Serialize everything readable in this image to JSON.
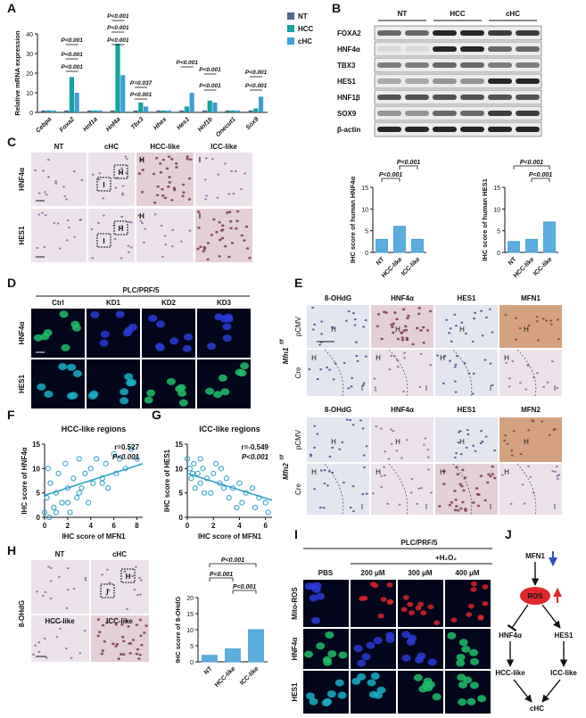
{
  "panels": {
    "A": {
      "label": "A",
      "chart": {
        "type": "bar",
        "y_label": "Relative mRNA expression",
        "categories": [
          "Cebpa",
          "Foxa2",
          "Hnf1a",
          "Hnf4a",
          "Tbx3",
          "Hhex",
          "Hes1",
          "Hnf1b",
          "Onecut1",
          "Sox9"
        ],
        "series": [
          {
            "name": "NT",
            "color": "#4e6a8e",
            "values": [
              1,
              1,
              1,
              1,
              1,
              1,
              1,
              1,
              1,
              1
            ]
          },
          {
            "name": "HCC",
            "color": "#14a3a0",
            "values": [
              1,
              18,
              1,
              35,
              5,
              1,
              3,
              6,
              1,
              2
            ]
          },
          {
            "name": "cHC",
            "color": "#3d9fd6",
            "values": [
              1,
              10,
              1,
              19,
              3,
              1,
              10,
              5,
              1,
              8
            ]
          }
        ],
        "ylim": [
          0,
          40
        ],
        "yticks": [
          0,
          10,
          20,
          30,
          40
        ],
        "annotations": [
          "P<0.001",
          "P<0.001",
          "P<0.001",
          "P<0.001",
          "P<0.001",
          "P<0.001",
          "P=0.037",
          "P<0.001",
          "P<0.001",
          "P<0.001",
          "P<0.001",
          "P<0.001",
          "P<0.001"
        ]
      }
    },
    "B": {
      "label": "B",
      "groups": [
        "NT",
        "HCC",
        "cHC"
      ],
      "proteins": [
        "FOXA2",
        "HNF4α",
        "TBX3",
        "HES1",
        "HNF1β",
        "SOX9",
        "β-actin"
      ]
    },
    "C": {
      "label": "C",
      "columns": [
        "NT",
        "cHC",
        "HCC-like",
        "ICC-like"
      ],
      "rows": [
        "HNF4α",
        "HES1"
      ],
      "inset_labels": [
        "I",
        "H"
      ],
      "charts": [
        {
          "type": "bar",
          "y_label": "IHC score of human HNF4α",
          "categories": [
            "NT",
            "HCC-like",
            "ICC-like"
          ],
          "values": [
            3,
            6,
            3
          ],
          "color": "#3d9fd6",
          "ylim": [
            0,
            15
          ],
          "yticks": [
            0,
            5,
            10,
            15
          ],
          "annotations": [
            "P<0.001",
            "P<0.001"
          ]
        },
        {
          "type": "bar",
          "y_label": "IHC score of human HES1",
          "categories": [
            "NT",
            "HCC-like",
            "ICC-like"
          ],
          "values": [
            2.5,
            3,
            7
          ],
          "color": "#3d9fd6",
          "ylim": [
            0,
            15
          ],
          "yticks": [
            0,
            5,
            10,
            15
          ],
          "annotations": [
            "P<0.001",
            "P<0.001"
          ]
        }
      ]
    },
    "D": {
      "label": "D",
      "cell_line": "PLC/PRF/5",
      "columns": [
        "Ctrl",
        "KD1",
        "KD2",
        "KD3"
      ],
      "rows": [
        "HNF4α",
        "HES1"
      ]
    },
    "E": {
      "label": "E",
      "region_labels": [
        "H",
        "I"
      ],
      "blocks": [
        {
          "genotype": "Mfn1",
          "genotype_sup": "f/f",
          "columns": [
            "8-OHdG",
            "HNF4α",
            "HES1",
            "MFN1"
          ],
          "rows": [
            "pCMV",
            "Cre"
          ]
        },
        {
          "genotype": "Mfn2",
          "genotype_sup": "f/f",
          "columns": [
            "8-OHdG",
            "HNF4α",
            "HES1",
            "MFN2"
          ],
          "rows": [
            "pCMV",
            "Cre"
          ]
        }
      ]
    },
    "F": {
      "label": "F",
      "chart": {
        "type": "scatter",
        "title": "HCC-like regions",
        "stats": [
          "r=0.527",
          "P<0.001"
        ],
        "x_label": "IHC score of MFN1",
        "y_label": "IHC score of HNF4α",
        "x": [
          0,
          0.2,
          0.4,
          0.5,
          0.8,
          1,
          1.2,
          1.5,
          1.8,
          2,
          2.2,
          2.5,
          2.8,
          3,
          3.2,
          3.5,
          3.8,
          4,
          4.2,
          4.5,
          5,
          5.3,
          5.5,
          6,
          6.2,
          6.5,
          7,
          7.5,
          8,
          0.3,
          1,
          2,
          3,
          5
        ],
        "y": [
          1,
          4,
          0,
          7,
          2,
          5,
          9,
          3,
          11,
          6,
          1,
          8,
          4,
          12,
          6,
          9,
          3,
          10,
          7,
          12,
          8,
          11,
          6,
          13,
          9,
          12,
          10,
          14,
          12,
          10,
          1,
          3,
          5,
          7
        ],
        "fit": {
          "x": [
            0,
            8.5
          ],
          "y": [
            4.5,
            11
          ]
        },
        "xlim": [
          0,
          8.5
        ],
        "ylim": [
          0,
          15
        ],
        "xticks": [
          0,
          2,
          4,
          6,
          8
        ],
        "yticks": [
          0,
          5,
          10,
          15
        ],
        "color": "#2a9fc9"
      }
    },
    "G": {
      "label": "G",
      "chart": {
        "type": "scatter",
        "title": "ICC-like regions",
        "stats": [
          "r=-0.549",
          "P<0.001"
        ],
        "x_label": "IHC score of MFN1",
        "y_label": "IHC score of HES1",
        "x": [
          0,
          0.2,
          0.3,
          0.5,
          0.6,
          0.8,
          1,
          1,
          1.2,
          1.5,
          1.8,
          2,
          2.2,
          2.5,
          2.8,
          3,
          3.2,
          3.5,
          4,
          4.2,
          4.5,
          5,
          5.2,
          5.5,
          6,
          6.2,
          0.4,
          1.3,
          2.6,
          3.8
        ],
        "y": [
          12,
          10,
          8,
          11,
          6,
          9,
          12,
          7,
          10,
          8,
          5,
          9,
          11,
          7,
          6,
          8,
          4,
          6,
          7,
          3,
          5,
          6,
          2,
          4,
          3,
          1,
          9,
          5,
          10,
          2
        ],
        "fit": {
          "x": [
            0,
            6.5
          ],
          "y": [
            9,
            3.5
          ]
        },
        "xlim": [
          0,
          6.5
        ],
        "ylim": [
          0,
          15
        ],
        "xticks": [
          0,
          2,
          4,
          6
        ],
        "yticks": [
          0,
          5,
          10,
          15
        ],
        "color": "#2a9fc9"
      }
    },
    "H": {
      "label": "H",
      "columns": [
        "NT",
        "cHC"
      ],
      "lower": [
        "HCC-like",
        "ICC-like"
      ],
      "row": "8-OHdG",
      "inset_labels": [
        "I",
        "H"
      ],
      "chart": {
        "type": "bar",
        "y_label": "IHC score of 8-OHdG",
        "categories": [
          "NT",
          "HCC-like",
          "ICC-like"
        ],
        "values": [
          2,
          4,
          10
        ],
        "color": "#3d9fd6",
        "ylim": [
          0,
          20
        ],
        "yticks": [
          0,
          5,
          10,
          15,
          20
        ],
        "annotations": [
          "P<0.001",
          "P<0.001",
          "P<0.001"
        ]
      }
    },
    "I": {
      "label": "I",
      "cell_line": "PLC/PRF/5",
      "treatment": "+H₂O₂",
      "columns": [
        "PBS",
        "200 μM",
        "300 μM",
        "400 μM"
      ],
      "rows": [
        "Mito-ROS",
        "HNF4α",
        "HES1"
      ]
    },
    "J": {
      "label": "J",
      "nodes": [
        "MFN1",
        "ROS",
        "HNF4α",
        "HES1",
        "HCC-like",
        "ICC-like",
        "cHC"
      ]
    }
  }
}
